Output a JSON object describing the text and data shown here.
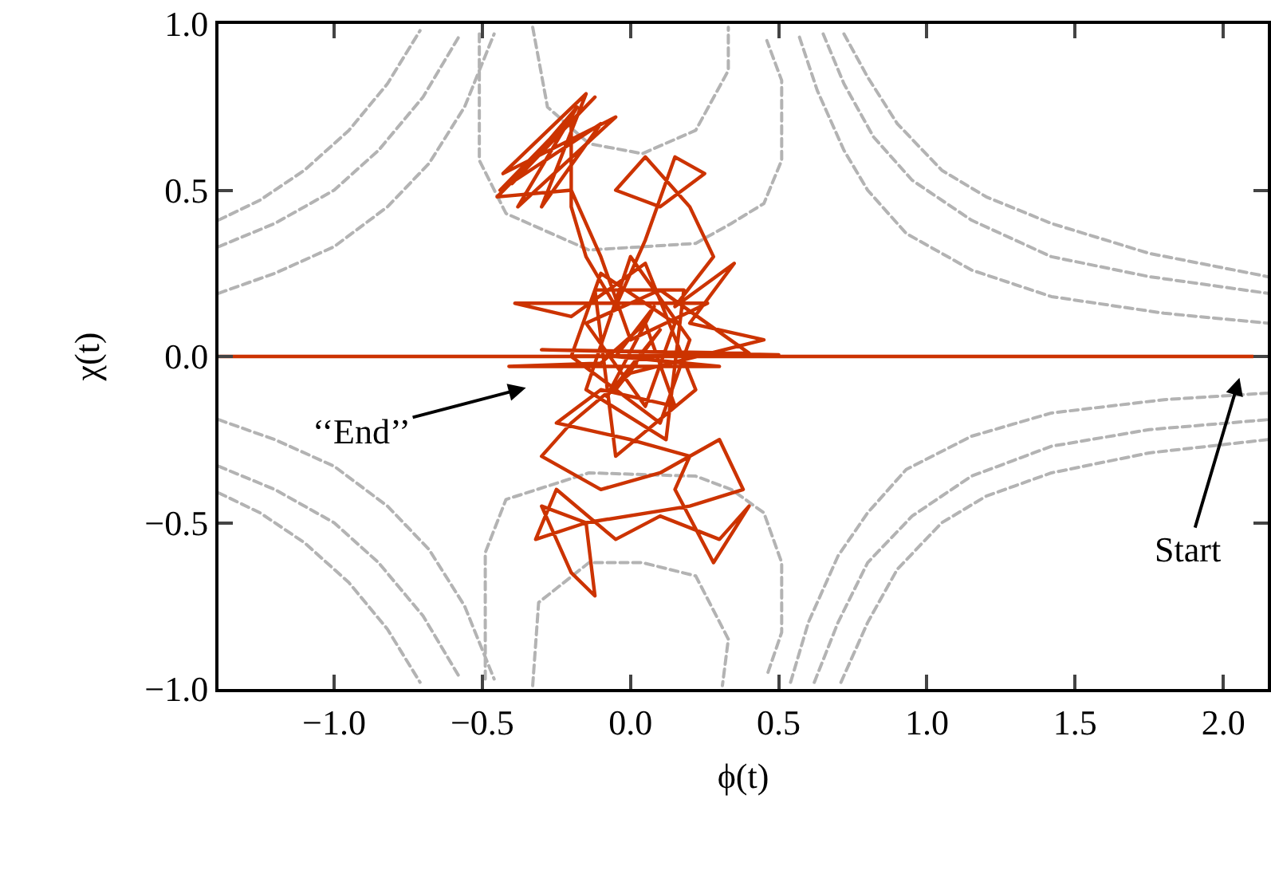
{
  "chart_data": {
    "type": "line",
    "xlabel": "ϕ(t)",
    "ylabel": "χ(t)",
    "xlim": [
      -1.39,
      2.15
    ],
    "ylim": [
      -1.0,
      1.0
    ],
    "xticks": [
      {
        "value": -1,
        "label": "−1.0"
      },
      {
        "value": -0.5,
        "label": "−0.5"
      },
      {
        "value": 0,
        "label": "0.0"
      },
      {
        "value": 0.5,
        "label": "0.5"
      },
      {
        "value": 1,
        "label": "1.0"
      },
      {
        "value": 1.5,
        "label": "1.5"
      },
      {
        "value": 2,
        "label": "2.0"
      }
    ],
    "yticks": [
      {
        "value": -1,
        "label": "−1.0"
      },
      {
        "value": -0.5,
        "label": "−0.5"
      },
      {
        "value": 0,
        "label": "0.0"
      },
      {
        "value": 0.5,
        "label": "0.5"
      },
      {
        "value": 1,
        "label": "1.0"
      }
    ],
    "annotations": [
      "Start",
      "‘‘End’’"
    ],
    "series": [
      {
        "color": "#b3b3b3",
        "line_style": "dashed",
        "x": [
          -1.39,
          -1.25,
          -1.1,
          -0.95,
          -0.82,
          -0.71
        ],
        "values": [
          0.41,
          0.47,
          0.56,
          0.68,
          0.82,
          0.98
        ]
      },
      {
        "color": "#b3b3b3",
        "line_style": "dashed",
        "x": [
          -1.39,
          -1.2,
          -1.0,
          -0.85,
          -0.7,
          -0.58
        ],
        "values": [
          0.33,
          0.4,
          0.5,
          0.62,
          0.78,
          0.96
        ]
      },
      {
        "color": "#b3b3b3",
        "line_style": "dashed",
        "x": [
          -1.39,
          -1.2,
          -1.0,
          -0.82,
          -0.68,
          -0.56,
          -0.46
        ],
        "values": [
          0.19,
          0.25,
          0.33,
          0.45,
          0.58,
          0.75,
          0.97
        ]
      },
      {
        "color": "#b3b3b3",
        "line_style": "dashed",
        "x": [
          -0.51,
          -0.51,
          -0.42,
          -0.14,
          0.22,
          0.34,
          0.45,
          0.51,
          0.51,
          0.46
        ],
        "values": [
          0.97,
          0.59,
          0.43,
          0.32,
          0.34,
          0.4,
          0.46,
          0.59,
          0.83,
          0.95
        ]
      },
      {
        "color": "#b3b3b3",
        "line_style": "dashed",
        "x": [
          -0.33,
          -0.28,
          -0.14,
          0.04,
          0.22,
          0.33,
          0.33
        ],
        "values": [
          0.99,
          0.75,
          0.64,
          0.61,
          0.68,
          0.86,
          0.99
        ]
      },
      {
        "color": "#b3b3b3",
        "line_style": "dashed",
        "x": [
          0.72,
          0.8,
          0.9,
          1.05,
          1.2,
          1.42,
          1.75,
          2.15
        ],
        "values": [
          0.97,
          0.84,
          0.7,
          0.56,
          0.48,
          0.4,
          0.31,
          0.24
        ]
      },
      {
        "color": "#b3b3b3",
        "line_style": "dashed",
        "x": [
          0.65,
          0.72,
          0.82,
          0.95,
          1.15,
          1.42,
          1.75,
          2.15
        ],
        "values": [
          0.97,
          0.82,
          0.66,
          0.53,
          0.41,
          0.3,
          0.24,
          0.19
        ]
      },
      {
        "color": "#b3b3b3",
        "line_style": "dashed",
        "x": [
          0.57,
          0.63,
          0.72,
          0.8,
          0.93,
          1.15,
          1.42,
          1.8,
          2.15
        ],
        "values": [
          0.96,
          0.8,
          0.62,
          0.5,
          0.37,
          0.26,
          0.18,
          0.13,
          0.1
        ]
      },
      {
        "color": "#b3b3b3",
        "line_style": "dashed",
        "x": [
          -1.39,
          -1.25,
          -1.1,
          -0.95,
          -0.82,
          -0.71
        ],
        "values": [
          -0.41,
          -0.47,
          -0.56,
          -0.68,
          -0.82,
          -0.98
        ]
      },
      {
        "color": "#b3b3b3",
        "line_style": "dashed",
        "x": [
          -1.39,
          -1.2,
          -1.0,
          -0.85,
          -0.7,
          -0.58
        ],
        "values": [
          -0.33,
          -0.4,
          -0.5,
          -0.62,
          -0.78,
          -0.96
        ]
      },
      {
        "color": "#b3b3b3",
        "line_style": "dashed",
        "x": [
          -1.39,
          -1.2,
          -1.0,
          -0.82,
          -0.68,
          -0.56,
          -0.46
        ],
        "values": [
          -0.19,
          -0.25,
          -0.33,
          -0.45,
          -0.58,
          -0.75,
          -0.97
        ]
      },
      {
        "color": "#b3b3b3",
        "line_style": "dashed",
        "x": [
          -0.49,
          -0.49,
          -0.42,
          -0.14,
          0.22,
          0.34,
          0.45,
          0.51,
          0.51,
          0.46
        ],
        "values": [
          -0.97,
          -0.59,
          -0.43,
          -0.35,
          -0.36,
          -0.4,
          -0.47,
          -0.62,
          -0.83,
          -0.96
        ]
      },
      {
        "color": "#b3b3b3",
        "line_style": "dashed",
        "x": [
          -0.33,
          -0.31,
          -0.14,
          0.04,
          0.22,
          0.33,
          0.31
        ],
        "values": [
          -0.99,
          -0.74,
          -0.62,
          -0.62,
          -0.66,
          -0.85,
          -0.99
        ]
      },
      {
        "color": "#b3b3b3",
        "line_style": "dashed",
        "x": [
          0.71,
          0.8,
          0.9,
          1.05,
          1.2,
          1.42,
          1.75,
          2.15
        ],
        "values": [
          -0.98,
          -0.8,
          -0.64,
          -0.5,
          -0.42,
          -0.35,
          -0.29,
          -0.25
        ]
      },
      {
        "color": "#b3b3b3",
        "line_style": "dashed",
        "x": [
          0.62,
          0.7,
          0.8,
          0.95,
          1.15,
          1.42,
          1.75,
          2.15
        ],
        "values": [
          -0.98,
          -0.8,
          -0.62,
          -0.48,
          -0.36,
          -0.27,
          -0.22,
          -0.19
        ]
      },
      {
        "color": "#b3b3b3",
        "line_style": "dashed",
        "x": [
          0.54,
          0.6,
          0.7,
          0.8,
          0.93,
          1.15,
          1.42,
          1.8,
          2.15
        ],
        "values": [
          -0.98,
          -0.8,
          -0.6,
          -0.47,
          -0.34,
          -0.24,
          -0.17,
          -0.13,
          -0.11
        ]
      },
      {
        "color": "#cc3300",
        "line_style": "solid",
        "x": [
          2.1,
          -1.39,
          0.65,
          -0.45,
          0.5,
          -0.3,
          0.4,
          0.1,
          -0.15,
          0.05,
          0.15,
          -0.1,
          -0.2,
          0.1,
          0.2,
          0.0,
          -0.15,
          0.12,
          0.18,
          -0.12,
          -0.05,
          0.22,
          0.05,
          -0.2,
          -0.39,
          0.26,
          0.0,
          -0.1,
          -0.2,
          -0.45,
          -0.12,
          -0.4,
          -0.18,
          -0.38,
          -0.05,
          -0.43,
          -0.15,
          -0.3,
          -0.1,
          -0.44,
          -0.2,
          -0.2,
          -0.15,
          -0.05,
          0.05,
          0.15,
          0.25,
          0.1,
          -0.05,
          0.05,
          0.2,
          0.28,
          0.15,
          0.35,
          0.2,
          0.45,
          0.0,
          -0.2,
          -0.3,
          -0.1,
          0.1,
          0.3,
          0.38,
          0.2,
          -0.15,
          -0.3,
          -0.2,
          -0.12,
          -0.15,
          -0.32,
          -0.25,
          -0.05,
          0.1,
          0.3,
          0.4,
          0.28,
          0.15,
          0.2,
          0.0,
          -0.25,
          -0.1,
          0.15,
          0.05,
          -0.1,
          -0.41,
          0.3,
          -0.05,
          0.08,
          -0.08,
          0.1,
          -0.05,
          0.02
        ],
        "values": [
          0.0,
          0.0,
          0.0,
          0.0,
          0.005,
          0.02,
          0.01,
          0.2,
          0.1,
          -0.15,
          0.1,
          0.25,
          0.0,
          -0.2,
          0.05,
          0.3,
          -0.1,
          -0.25,
          0.2,
          0.2,
          -0.3,
          -0.1,
          0.28,
          0.12,
          0.16,
          0.16,
          0.05,
          0.3,
          0.5,
          0.48,
          0.78,
          0.52,
          0.75,
          0.45,
          0.72,
          0.55,
          0.79,
          0.45,
          0.7,
          0.5,
          0.72,
          0.45,
          0.3,
          0.15,
          0.35,
          0.6,
          0.55,
          0.45,
          0.5,
          0.6,
          0.45,
          0.3,
          0.15,
          0.28,
          0.1,
          0.05,
          -0.05,
          -0.2,
          -0.3,
          -0.4,
          -0.35,
          -0.25,
          -0.4,
          -0.45,
          -0.5,
          -0.45,
          -0.65,
          -0.72,
          -0.5,
          -0.55,
          -0.4,
          -0.55,
          -0.48,
          -0.55,
          -0.45,
          -0.62,
          -0.4,
          -0.3,
          -0.25,
          -0.2,
          -0.1,
          -0.15,
          0.1,
          -0.02,
          -0.03,
          -0.03,
          0.0,
          0.15,
          -0.12,
          0.08,
          -0.1,
          -0.02
        ]
      }
    ]
  }
}
